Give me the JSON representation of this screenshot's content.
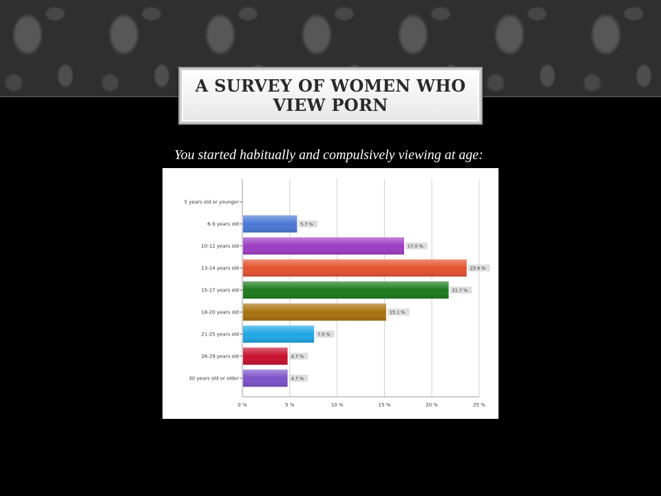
{
  "header": {
    "title": "A SURVEY OF WOMEN WHO VIEW PORN"
  },
  "subtitle": "You started habitually and compulsively viewing at age:",
  "chart_data": {
    "type": "bar",
    "orientation": "horizontal",
    "title": "",
    "xlabel": "",
    "ylabel": "",
    "xlim": [
      0,
      25
    ],
    "x_ticks": [
      "0 %",
      "5 %",
      "10 %",
      "15 %",
      "20 %",
      "25 %"
    ],
    "grid": true,
    "categories": [
      "5 years old or younger",
      "6-9 years old",
      "10-12 years old",
      "13-14 years old",
      "15-17 years old",
      "18-20 years old",
      "21-25 years old",
      "26-29 years old",
      "30 years old or older"
    ],
    "values": [
      0,
      5.7,
      17.0,
      23.6,
      21.7,
      15.1,
      7.5,
      4.7,
      4.7
    ],
    "data_labels": [
      "",
      "5.7 %",
      "17.0 %",
      "23.6 %",
      "21.7 %",
      "15.1 %",
      "7.5 %",
      "4.7 %",
      "4.7 %"
    ],
    "colors": [
      "#777777",
      "#4a78d6",
      "#9e3cc4",
      "#e4512f",
      "#1c7a1c",
      "#a8720e",
      "#1ea7e6",
      "#c8102e",
      "#7b52c8"
    ]
  }
}
